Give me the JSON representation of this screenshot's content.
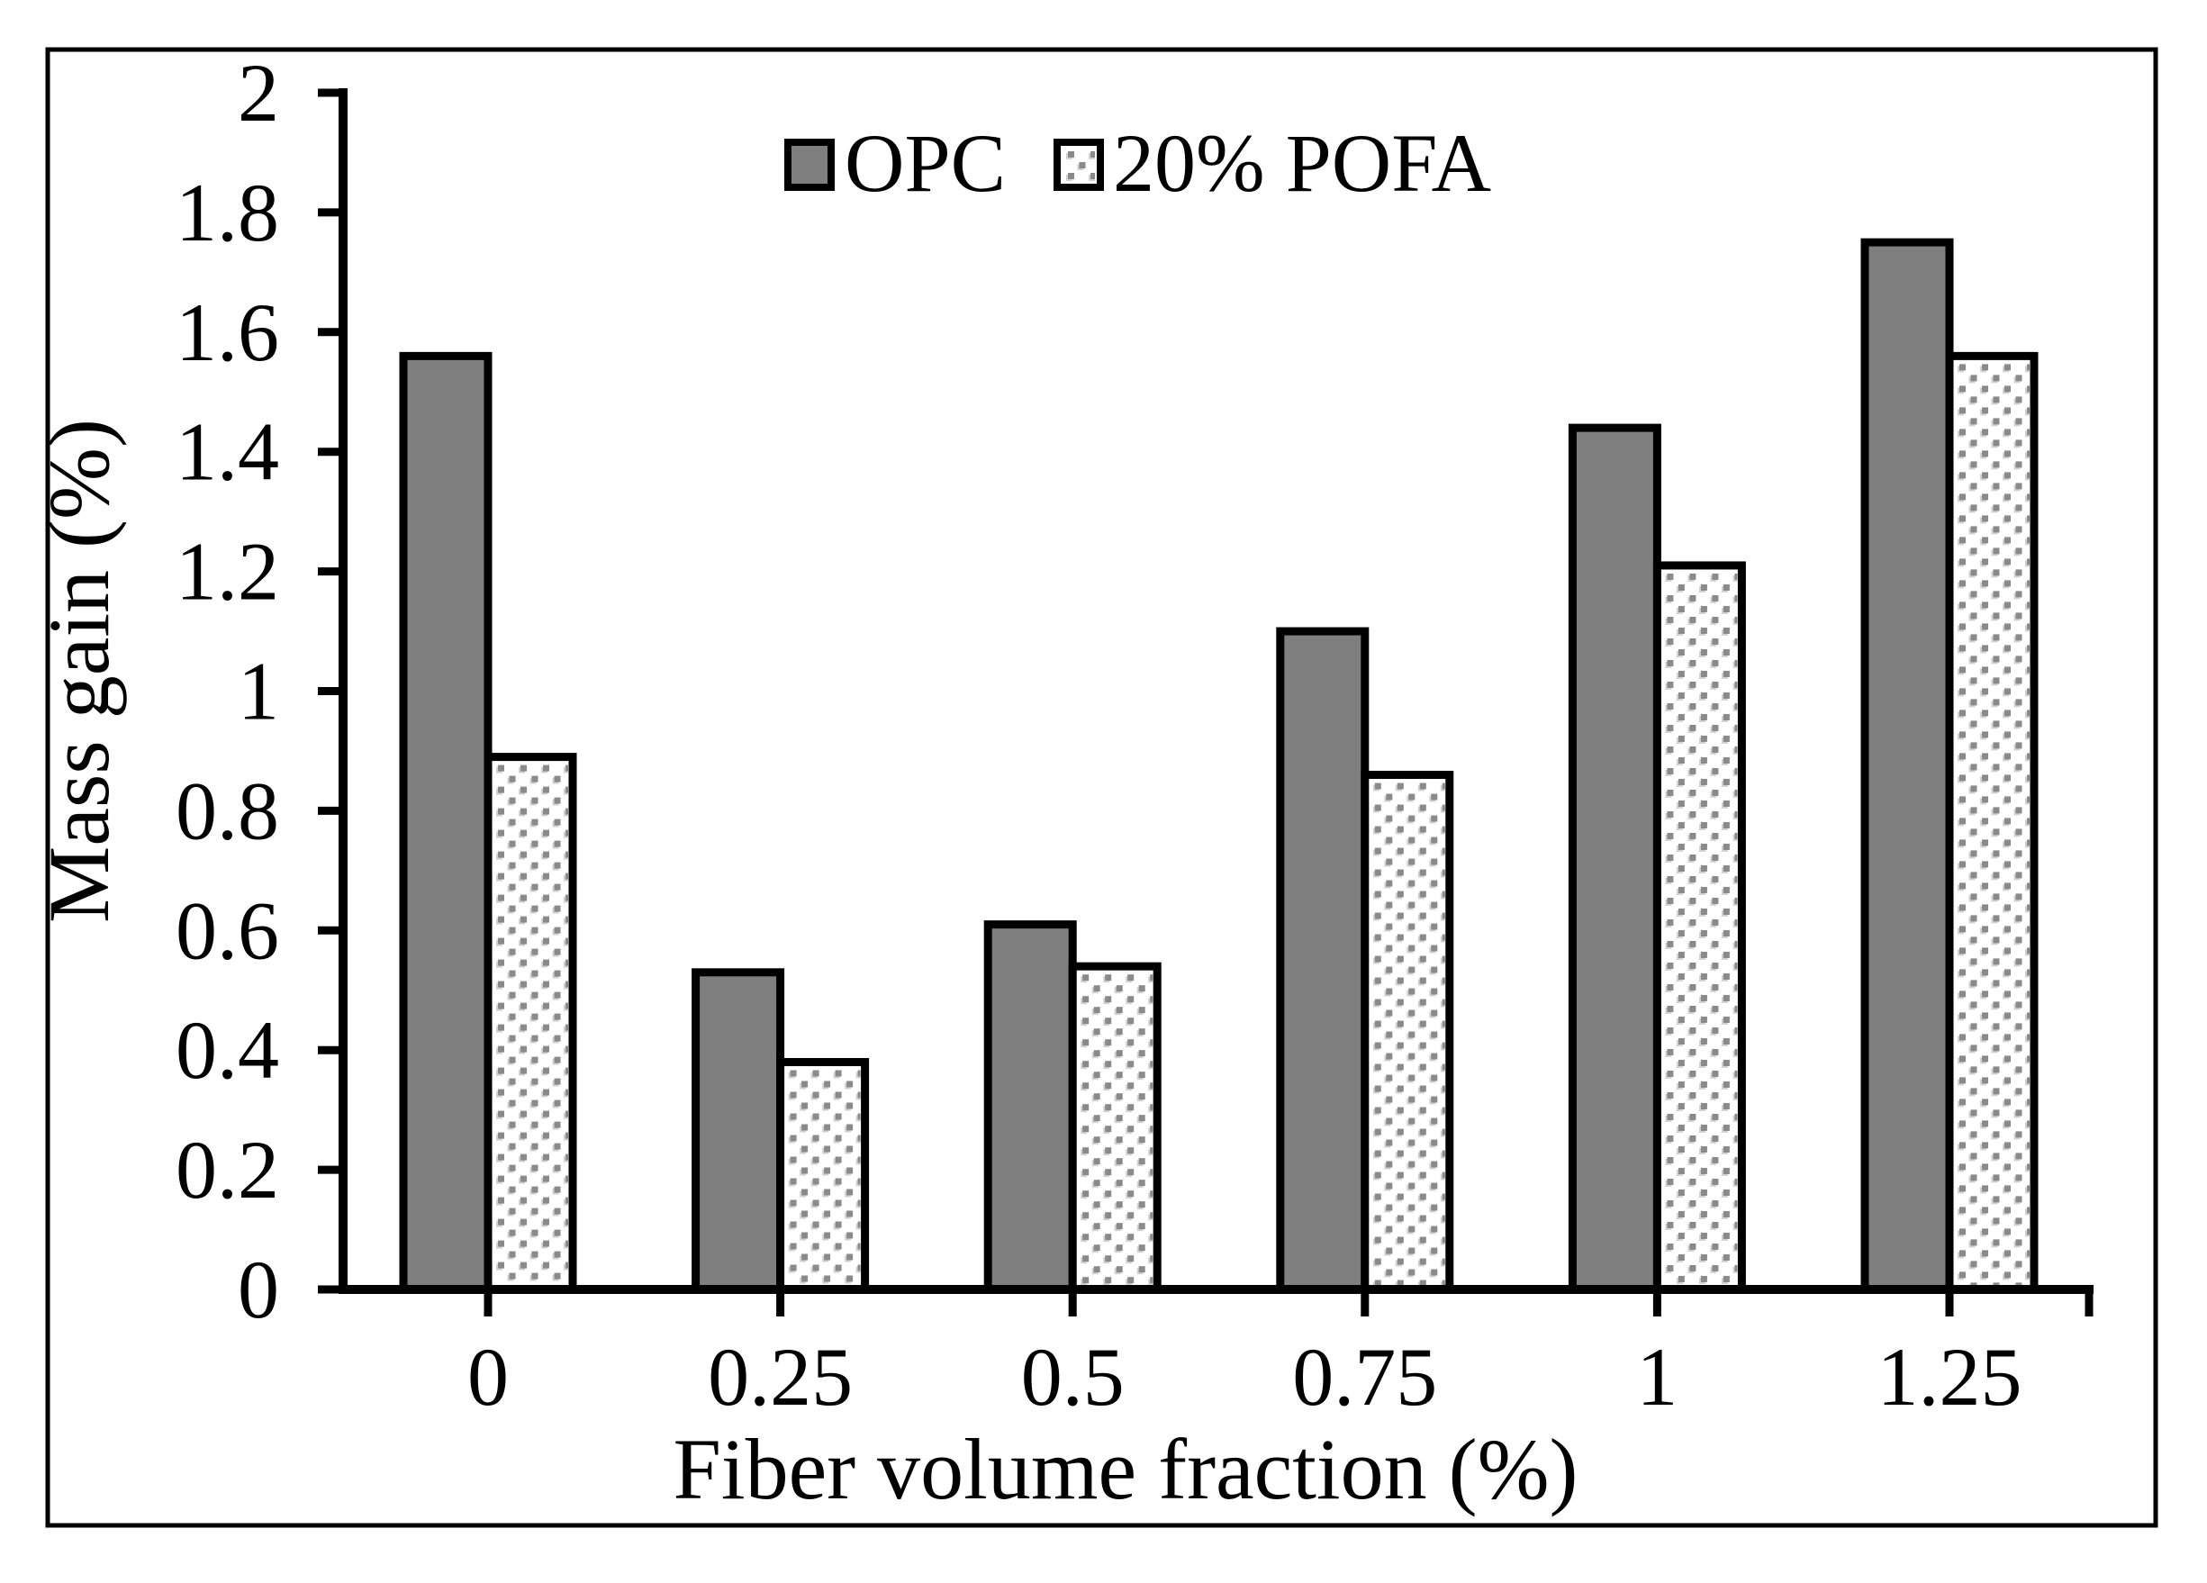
{
  "chart_data": {
    "type": "bar",
    "categories": [
      "0",
      "0.25",
      "0.5",
      "0.75",
      "1",
      "1.25"
    ],
    "series": [
      {
        "name": "OPC",
        "values": [
          1.56,
          0.53,
          0.61,
          1.1,
          1.44,
          1.75
        ],
        "style": "solid-gray"
      },
      {
        "name": "20% POFA",
        "values": [
          0.89,
          0.38,
          0.54,
          0.86,
          1.21,
          1.56
        ],
        "style": "dotted"
      }
    ],
    "xlabel": "Fiber volume fraction (%)",
    "ylabel": "Mass gain (%)",
    "ylim": [
      0,
      2
    ],
    "ytick_step": 0.2,
    "ytick_labels": [
      "0",
      "0.2",
      "0.4",
      "0.6",
      "0.8",
      "1",
      "1.2",
      "1.4",
      "1.6",
      "1.8",
      "2"
    ],
    "legend_position": "top-center",
    "grid": false
  },
  "colors": {
    "background": "#ffffff",
    "frame": "#000000",
    "axis": "#000000",
    "bar_border": "#000000",
    "opc_fill": "#7f7f7f",
    "pofa_bg": "#ffffff",
    "pofa_dot": "#8a8a8a",
    "pofa_dot_light": "#d2d2d2"
  }
}
